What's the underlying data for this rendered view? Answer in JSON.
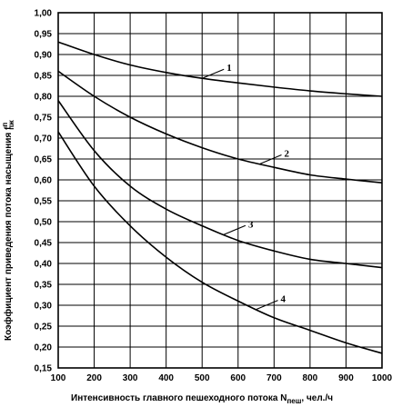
{
  "chart_data": {
    "type": "line",
    "xlabel": "Интенсивность главного пешеходного потока N",
    "xlabel_sub": "пеш",
    "xlabel_unit": ", чел./ч",
    "ylabel": "Коэффициент приведения потока насыщения f",
    "ylabel_sup": "п",
    "ylabel_sub": "пж",
    "xlim": [
      100,
      1000
    ],
    "ylim": [
      0.15,
      1.0
    ],
    "x_ticks": [
      "100",
      "200",
      "300",
      "400",
      "500",
      "600",
      "700",
      "800",
      "900",
      "1000"
    ],
    "y_ticks": [
      "0,15",
      "0,20",
      "0,25",
      "0,30",
      "0,35",
      "0,40",
      "0,45",
      "0,50",
      "0,55",
      "0,60",
      "0,65",
      "0,70",
      "0,75",
      "0,80",
      "0,85",
      "0,90",
      "0,95",
      "1,00"
    ],
    "grid": true,
    "x": [
      100,
      200,
      300,
      400,
      500,
      600,
      700,
      800,
      900,
      1000
    ],
    "series": [
      {
        "name": "1",
        "values": [
          0.93,
          0.9,
          0.875,
          0.857,
          0.843,
          0.832,
          0.822,
          0.813,
          0.806,
          0.8
        ],
        "label_x": 500
      },
      {
        "name": "2",
        "values": [
          0.86,
          0.8,
          0.75,
          0.71,
          0.677,
          0.65,
          0.63,
          0.612,
          0.602,
          0.593
        ],
        "label_x": 660
      },
      {
        "name": "3",
        "values": [
          0.79,
          0.67,
          0.585,
          0.53,
          0.49,
          0.455,
          0.43,
          0.41,
          0.4,
          0.39
        ],
        "label_x": 560
      },
      {
        "name": "4",
        "values": [
          0.715,
          0.585,
          0.49,
          0.415,
          0.355,
          0.31,
          0.27,
          0.24,
          0.21,
          0.185
        ],
        "label_x": 650
      }
    ]
  }
}
